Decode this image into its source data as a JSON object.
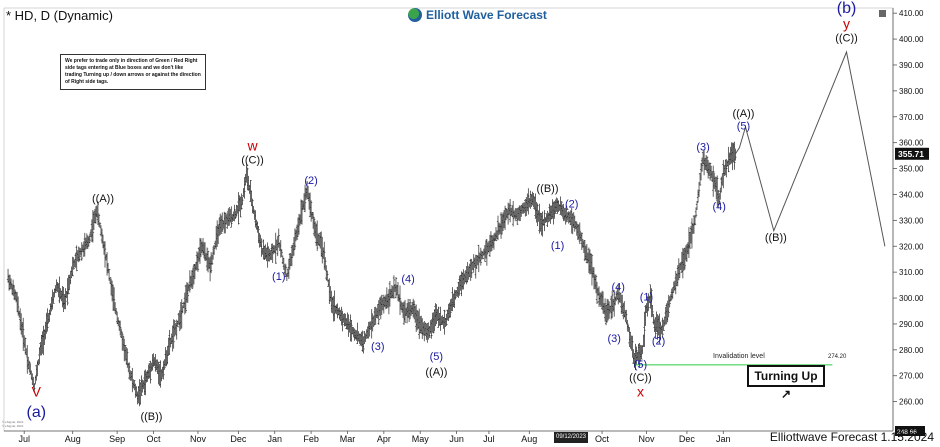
{
  "header": {
    "title": "* HD, D (Dynamic)",
    "brand": "Elliott Wave Forecast"
  },
  "note": "We prefer to trade only in direction of Green / Red Right side tags entering at Blue boxes and we don't like trading Turning up / down arrows or against the direction of Right side tags.",
  "button": {
    "label": "Turning Up ↗"
  },
  "invalidation": {
    "label": "Invalidation level",
    "value": "274.20",
    "color": "#2ecc40"
  },
  "footer": "Elliottwave Forecast 1.15.2024",
  "date_tag": "09/12/2023",
  "watermark": {
    "line1": "© eSignal, 2024",
    "line2": "© eSignal, 2024"
  },
  "colors": {
    "wave_blue": "#1a1aa0",
    "wave_red": "#cc0000",
    "candle": "#222222"
  },
  "chart_data": {
    "type": "ohlc",
    "ylim": [
      248.66,
      412
    ],
    "ticks_y": [
      260,
      270,
      280,
      290,
      300,
      310,
      320,
      330,
      340,
      350,
      360,
      370,
      380,
      390,
      400,
      410
    ],
    "tick_labels_y": [
      "260.00",
      "270.00",
      "280.00",
      "290.00",
      "300.00",
      "310.00",
      "320.00",
      "330.00",
      "340.00",
      "350.00",
      "360.00",
      "370.00",
      "380.00",
      "390.00",
      "400.00",
      "410.00"
    ],
    "last_price": "355.71",
    "bottom_price": "248.66",
    "months": [
      "Jul",
      "Aug",
      "Sep",
      "Oct",
      "Nov",
      "Dec",
      "Jan",
      "Feb",
      "Mar",
      "Apr",
      "May",
      "Jun",
      "Jul",
      "Aug",
      "Oct",
      "Nov",
      "Dec",
      "Jan"
    ],
    "month_x": [
      10,
      34,
      56,
      74,
      96,
      116,
      134,
      152,
      170,
      188,
      206,
      224,
      240,
      260,
      296,
      318,
      338,
      356
    ],
    "x_domain": [
      0,
      440
    ],
    "price_path": [
      [
        2,
        308
      ],
      [
        6,
        300
      ],
      [
        9,
        288
      ],
      [
        12,
        275
      ],
      [
        15,
        266
      ],
      [
        18,
        280
      ],
      [
        22,
        292
      ],
      [
        26,
        305
      ],
      [
        30,
        298
      ],
      [
        34,
        312
      ],
      [
        38,
        318
      ],
      [
        42,
        322
      ],
      [
        46,
        334
      ],
      [
        50,
        318
      ],
      [
        54,
        300
      ],
      [
        58,
        286
      ],
      [
        62,
        272
      ],
      [
        66,
        262
      ],
      [
        70,
        268
      ],
      [
        74,
        276
      ],
      [
        78,
        270
      ],
      [
        82,
        282
      ],
      [
        86,
        290
      ],
      [
        90,
        300
      ],
      [
        94,
        310
      ],
      [
        98,
        320
      ],
      [
        102,
        312
      ],
      [
        106,
        326
      ],
      [
        110,
        330
      ],
      [
        114,
        332
      ],
      [
        118,
        338
      ],
      [
        120,
        348
      ],
      [
        124,
        332
      ],
      [
        128,
        318
      ],
      [
        132,
        316
      ],
      [
        136,
        322
      ],
      [
        140,
        308
      ],
      [
        144,
        322
      ],
      [
        148,
        336
      ],
      [
        150,
        342
      ],
      [
        154,
        326
      ],
      [
        158,
        318
      ],
      [
        162,
        298
      ],
      [
        166,
        294
      ],
      [
        170,
        290
      ],
      [
        174,
        286
      ],
      [
        178,
        283
      ],
      [
        182,
        290
      ],
      [
        186,
        296
      ],
      [
        190,
        300
      ],
      [
        194,
        304
      ],
      [
        198,
        294
      ],
      [
        202,
        296
      ],
      [
        206,
        290
      ],
      [
        210,
        286
      ],
      [
        214,
        294
      ],
      [
        218,
        290
      ],
      [
        222,
        298
      ],
      [
        226,
        306
      ],
      [
        230,
        310
      ],
      [
        234,
        314
      ],
      [
        238,
        318
      ],
      [
        242,
        322
      ],
      [
        246,
        328
      ],
      [
        250,
        334
      ],
      [
        254,
        332
      ],
      [
        258,
        336
      ],
      [
        262,
        338
      ],
      [
        266,
        328
      ],
      [
        270,
        332
      ],
      [
        274,
        336
      ],
      [
        278,
        332
      ],
      [
        282,
        330
      ],
      [
        286,
        322
      ],
      [
        290,
        314
      ],
      [
        294,
        302
      ],
      [
        298,
        294
      ],
      [
        302,
        298
      ],
      [
        304,
        302
      ],
      [
        308,
        292
      ],
      [
        312,
        276
      ],
      [
        316,
        280
      ],
      [
        318,
        296
      ],
      [
        320,
        300
      ],
      [
        322,
        290
      ],
      [
        326,
        288
      ],
      [
        330,
        300
      ],
      [
        334,
        310
      ],
      [
        338,
        318
      ],
      [
        342,
        330
      ],
      [
        346,
        354
      ],
      [
        350,
        348
      ],
      [
        352,
        344
      ],
      [
        354,
        338
      ],
      [
        356,
        348
      ],
      [
        360,
        356
      ],
      [
        362,
        355.71
      ]
    ],
    "projection": [
      [
        364,
        358
      ],
      [
        367,
        366
      ],
      [
        381,
        326
      ],
      [
        417,
        395
      ],
      [
        436,
        320
      ]
    ],
    "labels": [
      {
        "text": "V",
        "x": 16,
        "y": 262,
        "color": "red"
      },
      {
        "text": "(a)",
        "x": 16,
        "y": 254,
        "color": "blue",
        "size": "big"
      },
      {
        "text": "((A))",
        "x": 49,
        "y": 337,
        "color": "black"
      },
      {
        "text": "((B))",
        "x": 73,
        "y": 253,
        "color": "black"
      },
      {
        "text": "w",
        "x": 123,
        "y": 357,
        "color": "red"
      },
      {
        "text": "((C))",
        "x": 123,
        "y": 352,
        "color": "black"
      },
      {
        "text": "(1)",
        "x": 136,
        "y": 307,
        "color": "blue"
      },
      {
        "text": "(2)",
        "x": 152,
        "y": 344,
        "color": "blue"
      },
      {
        "text": "(3)",
        "x": 185,
        "y": 280,
        "color": "blue"
      },
      {
        "text": "(4)",
        "x": 200,
        "y": 306,
        "color": "blue"
      },
      {
        "text": "(5)",
        "x": 214,
        "y": 276,
        "color": "blue"
      },
      {
        "text": "((A))",
        "x": 214,
        "y": 270,
        "color": "black"
      },
      {
        "text": "((B))",
        "x": 269,
        "y": 341,
        "color": "black"
      },
      {
        "text": "(1)",
        "x": 274,
        "y": 319,
        "color": "blue"
      },
      {
        "text": "(2)",
        "x": 281,
        "y": 335,
        "color": "blue"
      },
      {
        "text": "(3)",
        "x": 302,
        "y": 283,
        "color": "blue"
      },
      {
        "text": "(4)",
        "x": 304,
        "y": 303,
        "color": "blue"
      },
      {
        "text": "(5)",
        "x": 315,
        "y": 273,
        "color": "blue"
      },
      {
        "text": "((C))",
        "x": 315,
        "y": 268,
        "color": "black"
      },
      {
        "text": "x",
        "x": 315,
        "y": 262,
        "color": "red"
      },
      {
        "text": "(1)",
        "x": 318,
        "y": 299,
        "color": "blue"
      },
      {
        "text": "(2)",
        "x": 324,
        "y": 282,
        "color": "blue"
      },
      {
        "text": "(3)",
        "x": 346,
        "y": 357,
        "color": "blue"
      },
      {
        "text": "(4)",
        "x": 354,
        "y": 334,
        "color": "blue"
      },
      {
        "text": "((A))",
        "x": 366,
        "y": 370,
        "color": "black"
      },
      {
        "text": "(5)",
        "x": 366,
        "y": 365,
        "color": "blue"
      },
      {
        "text": "((B))",
        "x": 382,
        "y": 322,
        "color": "black"
      },
      {
        "text": "(b)",
        "x": 417,
        "y": 410,
        "color": "blue",
        "size": "big"
      },
      {
        "text": "y",
        "x": 417,
        "y": 404,
        "color": "red"
      },
      {
        "text": "((C))",
        "x": 417,
        "y": 399,
        "color": "black"
      }
    ]
  }
}
